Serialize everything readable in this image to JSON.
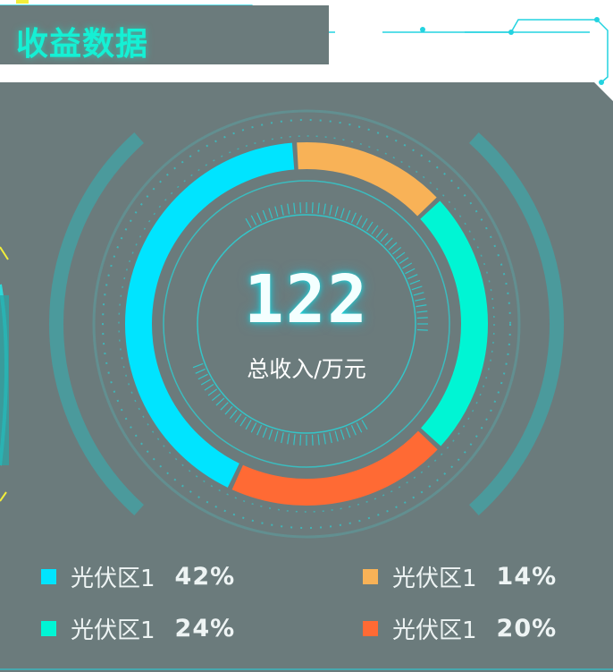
{
  "title": "收益数据",
  "total": {
    "value": "122",
    "label": "总收入/万元"
  },
  "colors": {
    "panel": "#6b7b7c",
    "accent": "#1de6e6",
    "cyan": "#00e4ff",
    "orange": "#f8b257",
    "teal": "#00f5d4",
    "red": "#ff6a34"
  },
  "legend": [
    {
      "label": "光伏区1",
      "percent": "42%",
      "color": "#00e4ff"
    },
    {
      "label": "光伏区1",
      "percent": "14%",
      "color": "#f8b257"
    },
    {
      "label": "光伏区1",
      "percent": "24%",
      "color": "#00f5d4"
    },
    {
      "label": "光伏区1",
      "percent": "20%",
      "color": "#ff6a34"
    }
  ],
  "chart_data": {
    "type": "pie",
    "categories": [
      "光伏区1",
      "光伏区1",
      "光伏区1",
      "光伏区1"
    ],
    "values": [
      42,
      14,
      24,
      20
    ],
    "colors": [
      "#00e4ff",
      "#f8b257",
      "#00f5d4",
      "#ff6a34"
    ]
  }
}
